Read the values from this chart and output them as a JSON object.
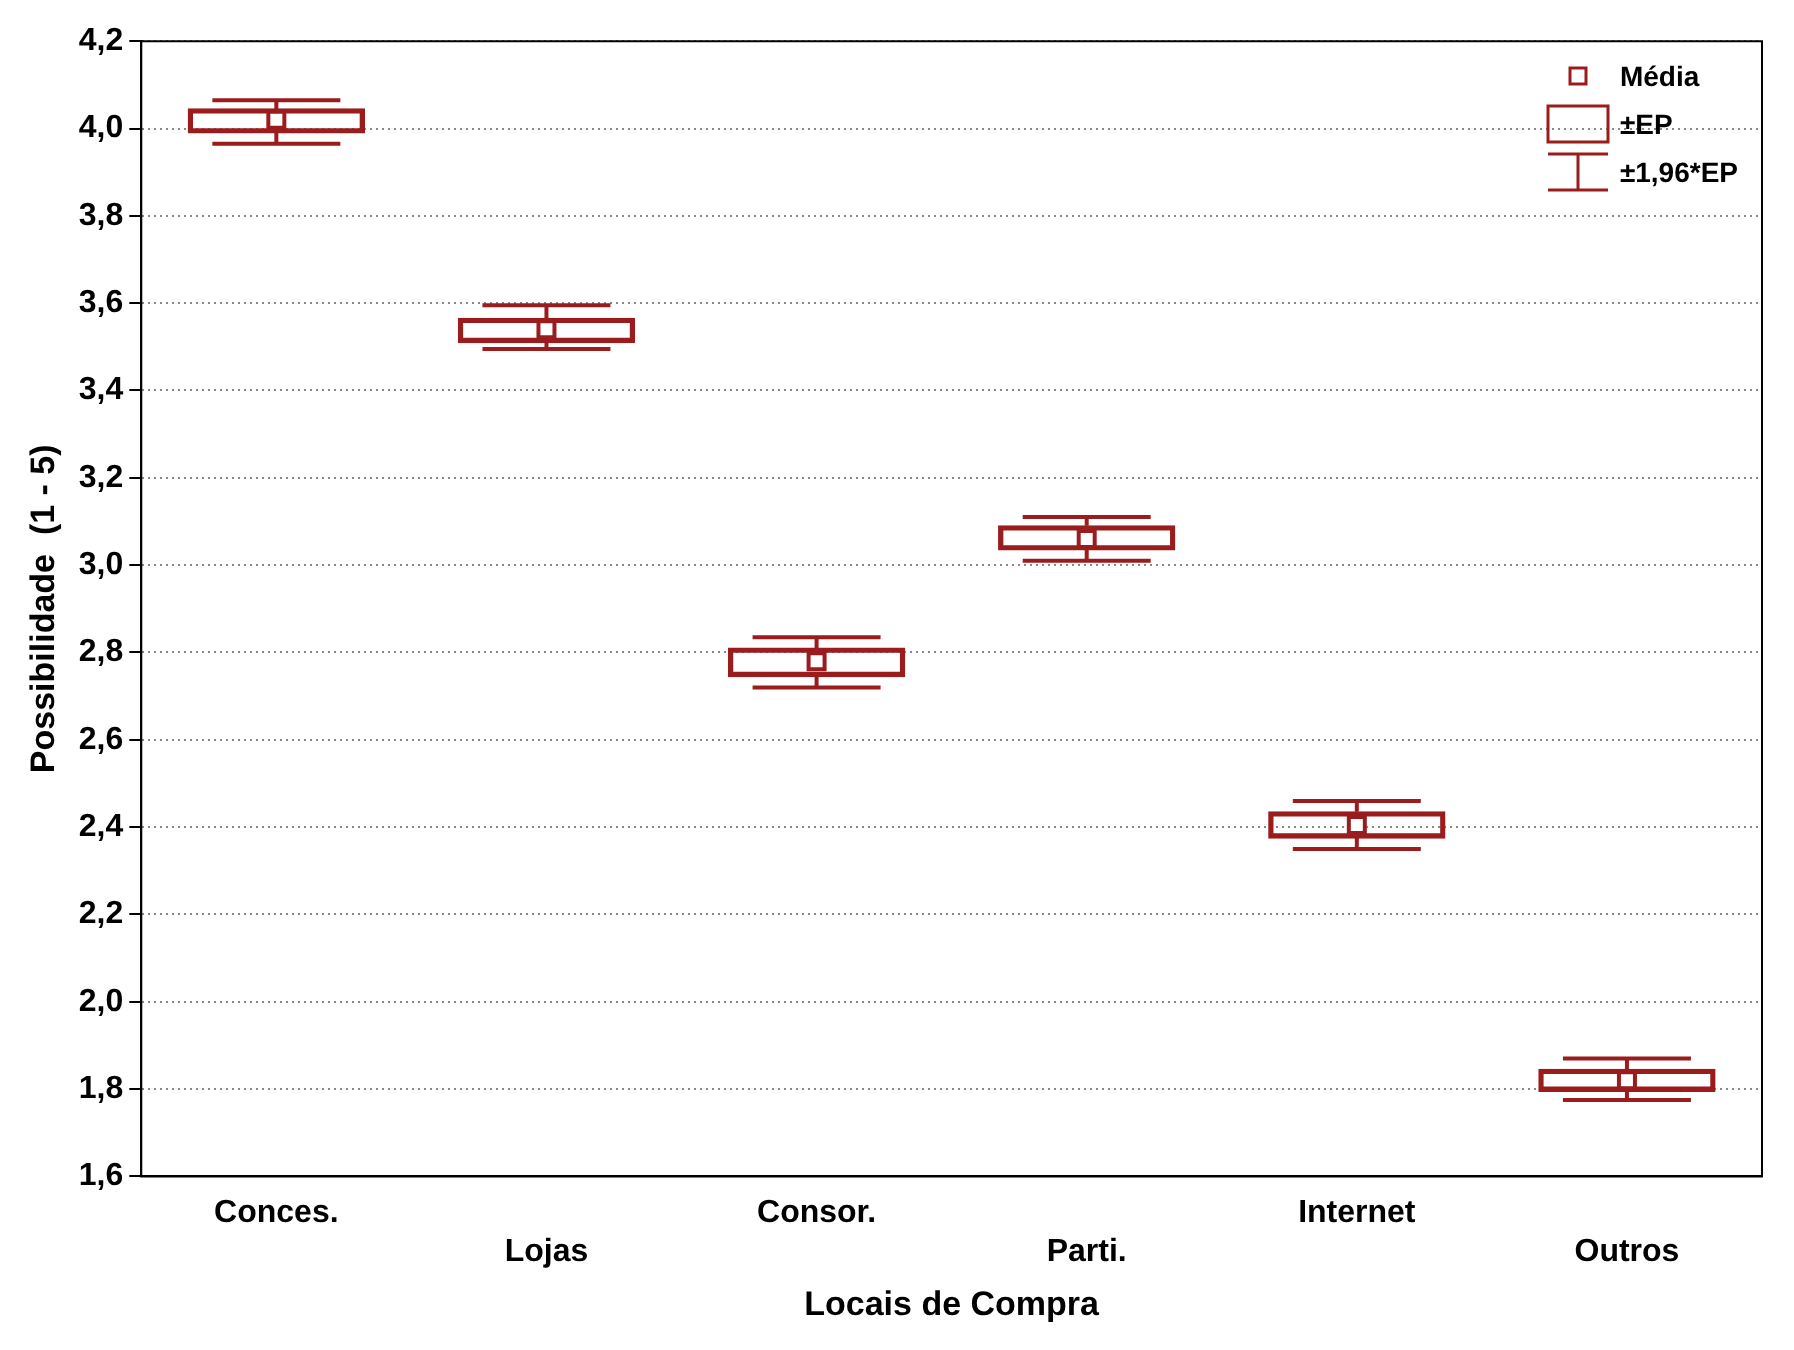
{
  "chart_data": {
    "type": "box",
    "xlabel": "Locais de Compra",
    "ylabel": "Possibilidade  (1 - 5)",
    "categories": [
      "Conces.",
      "Lojas",
      "Consor.",
      "Parti.",
      "Internet",
      "Outros"
    ],
    "boxes": [
      {
        "low": 3.965,
        "q1": 3.99,
        "median": 4.02,
        "q3": 4.045,
        "high": 4.065
      },
      {
        "low": 3.495,
        "q1": 3.51,
        "median": 3.54,
        "q3": 3.565,
        "high": 3.595
      },
      {
        "low": 2.72,
        "q1": 2.745,
        "median": 2.78,
        "q3": 2.81,
        "high": 2.835
      },
      {
        "low": 3.01,
        "q1": 3.035,
        "median": 3.06,
        "q3": 3.09,
        "high": 3.11
      },
      {
        "low": 2.35,
        "q1": 2.375,
        "median": 2.405,
        "q3": 2.435,
        "high": 2.46
      },
      {
        "low": 1.775,
        "q1": 1.795,
        "median": 1.82,
        "q3": 1.845,
        "high": 1.87
      }
    ],
    "color": "#9b1c1c",
    "ylim": [
      1.6,
      4.2
    ],
    "yticks": [
      {
        "value": 1.6,
        "label": "1,6"
      },
      {
        "value": 1.8,
        "label": "1,8"
      },
      {
        "value": 2.0,
        "label": "2,0"
      },
      {
        "value": 2.2,
        "label": "2,2"
      },
      {
        "value": 2.4,
        "label": "2,4"
      },
      {
        "value": 2.6,
        "label": "2,6"
      },
      {
        "value": 2.8,
        "label": "2,8"
      },
      {
        "value": 3.0,
        "label": "3,0"
      },
      {
        "value": 3.2,
        "label": "3,2"
      },
      {
        "value": 3.4,
        "label": "3,4"
      },
      {
        "value": 3.6,
        "label": "3,6"
      },
      {
        "value": 3.8,
        "label": "3,8"
      },
      {
        "value": 4.0,
        "label": "4,0"
      },
      {
        "value": 4.2,
        "label": "4,2"
      }
    ],
    "grid": "y",
    "annotations": [
      "Média",
      "±EP",
      "±1,96*EP"
    ]
  }
}
